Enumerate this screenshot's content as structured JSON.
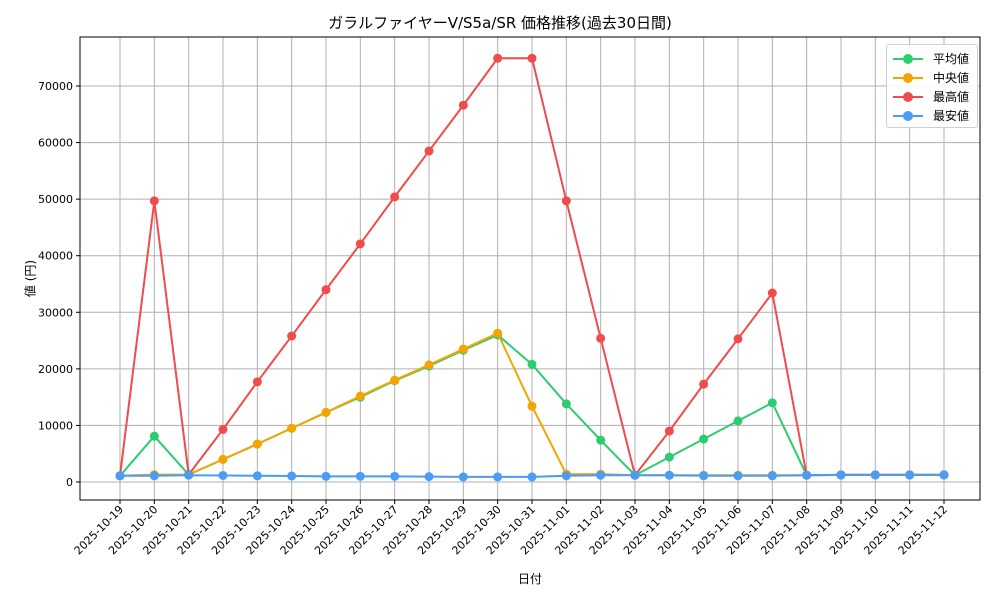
{
  "chart_data": {
    "type": "line",
    "title": "ガラルファイヤーV/S5a/SR 価格推移(過去30日間)",
    "xlabel": "日付",
    "ylabel": "値 (円)",
    "ylim": [
      -2700,
      78500
    ],
    "yticks": [
      0,
      10000,
      20000,
      30000,
      40000,
      50000,
      60000,
      70000
    ],
    "grid": true,
    "legend_position": "upper right",
    "categories": [
      "2025-10-19",
      "2025-10-20",
      "2025-10-21",
      "2025-10-22",
      "2025-10-23",
      "2025-10-24",
      "2025-10-25",
      "2025-10-26",
      "2025-10-27",
      "2025-10-28",
      "2025-10-29",
      "2025-10-30",
      "2025-10-31",
      "2025-11-01",
      "2025-11-02",
      "2025-11-03",
      "2025-11-04",
      "2025-11-05",
      "2025-11-06",
      "2025-11-07",
      "2025-11-08",
      "2025-11-09",
      "2025-11-10",
      "2025-11-11",
      "2025-11-12"
    ],
    "series": [
      {
        "name": "平均値",
        "color": "#2ecc71",
        "values": [
          1100,
          8100,
          1300,
          4000,
          6700,
          9500,
          12300,
          15000,
          17900,
          20500,
          23300,
          26000,
          20800,
          13800,
          7400,
          1200,
          4400,
          7600,
          10800,
          14000,
          1200,
          1250,
          1250,
          1250,
          1250
        ]
      },
      {
        "name": "中央値",
        "color": "#f5a500",
        "values": [
          1100,
          1300,
          1300,
          4000,
          6700,
          9500,
          12300,
          15200,
          18000,
          20700,
          23500,
          26300,
          13400,
          1400,
          1400,
          1200,
          1200,
          1200,
          1200,
          1200,
          1200,
          1250,
          1250,
          1250,
          1250
        ]
      },
      {
        "name": "最高値",
        "color": "#f14b4b",
        "values": [
          1100,
          49700,
          1300,
          9300,
          17700,
          25800,
          34000,
          42100,
          50400,
          58500,
          66600,
          74900,
          74900,
          49700,
          25400,
          1200,
          9000,
          17300,
          25300,
          33400,
          1200,
          1250,
          1250,
          1250,
          1250
        ]
      },
      {
        "name": "最安値",
        "color": "#4a9cf5",
        "values": [
          1100,
          1100,
          1200,
          1150,
          1100,
          1050,
          1000,
          1000,
          1000,
          950,
          900,
          900,
          900,
          1100,
          1200,
          1200,
          1200,
          1100,
          1100,
          1100,
          1200,
          1250,
          1250,
          1250,
          1250
        ]
      }
    ]
  },
  "legend": [
    {
      "label": "平均値",
      "color": "#2ecc71"
    },
    {
      "label": "中央値",
      "color": "#f5a500"
    },
    {
      "label": "最高値",
      "color": "#f14b4b"
    },
    {
      "label": "最安値",
      "color": "#4a9cf5"
    }
  ]
}
